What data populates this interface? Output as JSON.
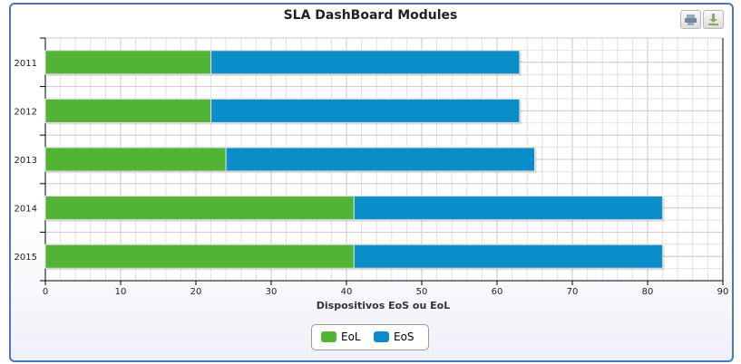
{
  "chart_data": {
    "type": "bar",
    "orientation": "horizontal",
    "stacked": true,
    "title": "SLA DashBoard Modules",
    "xlabel": "Dispositivos EoS ou EoL",
    "ylabel": "",
    "categories": [
      "2011",
      "2012",
      "2013",
      "2014",
      "2015"
    ],
    "series": [
      {
        "name": "EoL",
        "color": "#52b435",
        "values": [
          22,
          22,
          24,
          41,
          41
        ]
      },
      {
        "name": "EoS",
        "color": "#0a8dc8",
        "values": [
          41,
          41,
          41,
          41,
          41
        ]
      }
    ],
    "xlim": [
      0,
      90
    ],
    "xticks": [
      0,
      10,
      20,
      30,
      40,
      50,
      60,
      70,
      80,
      90
    ],
    "grid": true,
    "legend": "bottom-center"
  },
  "toolbar": {
    "print_icon": "printer-icon",
    "download_icon": "download-icon"
  }
}
